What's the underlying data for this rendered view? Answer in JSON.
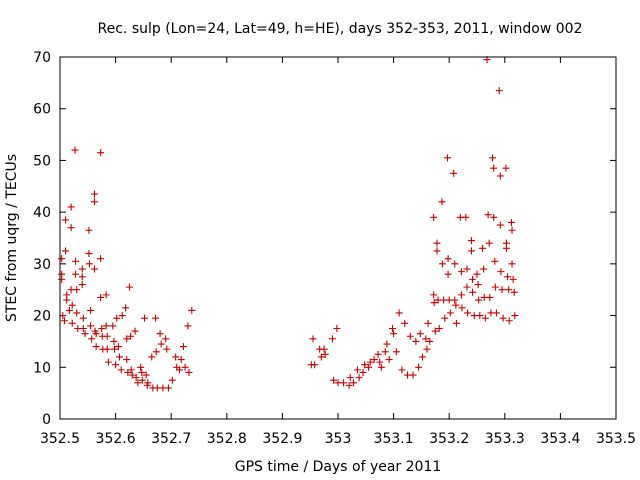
{
  "chart_data": {
    "type": "scatter",
    "title": "Rec. sulp (Lon=24, Lat=49, h=HE), days 352-353, 2011, window 002",
    "xlabel": "GPS time / Days of year 2011",
    "ylabel": "STEC from uqrg / TECUs",
    "xlim": [
      352.5,
      353.5
    ],
    "ylim": [
      0,
      70
    ],
    "xticks": [
      352.5,
      352.6,
      352.7,
      352.8,
      352.9,
      353.0,
      353.1,
      353.2,
      353.3,
      353.4,
      353.5
    ],
    "xtick_labels": [
      "352.5",
      "352.6",
      "352.7",
      "352.8",
      "352.9",
      "353",
      "353.1",
      "353.2",
      "353.3",
      "353.4",
      "353.5"
    ],
    "yticks": [
      0,
      10,
      20,
      30,
      40,
      50,
      60,
      70
    ],
    "ytick_labels": [
      "0",
      "10",
      "20",
      "30",
      "40",
      "50",
      "60",
      "70"
    ],
    "grid": false,
    "marker": "+",
    "color": "#cc0000",
    "points": [
      [
        352.503,
        31.0
      ],
      [
        352.503,
        28.0
      ],
      [
        352.503,
        27.0
      ],
      [
        352.505,
        20.0
      ],
      [
        352.508,
        19.0
      ],
      [
        352.51,
        38.5
      ],
      [
        352.51,
        32.5
      ],
      [
        352.512,
        24.0
      ],
      [
        352.512,
        23.0
      ],
      [
        352.517,
        21.0
      ],
      [
        352.52,
        41.0
      ],
      [
        352.52,
        37.0
      ],
      [
        352.52,
        25.0
      ],
      [
        352.522,
        22.0
      ],
      [
        352.522,
        18.5
      ],
      [
        352.527,
        52.0
      ],
      [
        352.528,
        30.5
      ],
      [
        352.528,
        28.0
      ],
      [
        352.53,
        25.0
      ],
      [
        352.53,
        20.5
      ],
      [
        352.532,
        17.5
      ],
      [
        352.54,
        29.0
      ],
      [
        352.54,
        27.5
      ],
      [
        352.54,
        26.0
      ],
      [
        352.542,
        19.5
      ],
      [
        352.542,
        17.5
      ],
      [
        352.545,
        16.5
      ],
      [
        352.552,
        36.5
      ],
      [
        352.552,
        32.0
      ],
      [
        352.553,
        30.0
      ],
      [
        352.555,
        21.0
      ],
      [
        352.555,
        18.0
      ],
      [
        352.557,
        15.5
      ],
      [
        352.562,
        43.5
      ],
      [
        352.562,
        42.0
      ],
      [
        352.562,
        29.0
      ],
      [
        352.563,
        17.0
      ],
      [
        352.565,
        16.5
      ],
      [
        352.565,
        14.0
      ],
      [
        352.573,
        51.5
      ],
      [
        352.573,
        31.0
      ],
      [
        352.573,
        23.5
      ],
      [
        352.575,
        17.5
      ],
      [
        352.576,
        16.0
      ],
      [
        352.577,
        13.5
      ],
      [
        352.583,
        24.0
      ],
      [
        352.583,
        18.0
      ],
      [
        352.585,
        16.0
      ],
      [
        352.585,
        13.5
      ],
      [
        352.587,
        11.0
      ],
      [
        352.595,
        18.0
      ],
      [
        352.597,
        15.0
      ],
      [
        352.598,
        13.5
      ],
      [
        352.6,
        10.5
      ],
      [
        352.602,
        19.5
      ],
      [
        352.605,
        14.0
      ],
      [
        352.607,
        12.0
      ],
      [
        352.61,
        9.5
      ],
      [
        352.612,
        20.0
      ],
      [
        352.618,
        21.5
      ],
      [
        352.62,
        15.5
      ],
      [
        352.62,
        11.5
      ],
      [
        352.622,
        9.0
      ],
      [
        352.625,
        25.5
      ],
      [
        352.627,
        16.0
      ],
      [
        352.628,
        9.5
      ],
      [
        352.63,
        8.5
      ],
      [
        352.635,
        17.0
      ],
      [
        352.637,
        8.0
      ],
      [
        352.64,
        7.0
      ],
      [
        352.645,
        10.0
      ],
      [
        352.647,
        9.0
      ],
      [
        352.648,
        7.5
      ],
      [
        352.652,
        19.5
      ],
      [
        352.655,
        8.5
      ],
      [
        352.657,
        6.5
      ],
      [
        352.658,
        7.0
      ],
      [
        352.665,
        12.0
      ],
      [
        352.667,
        6.0
      ],
      [
        352.672,
        19.5
      ],
      [
        352.673,
        13.0
      ],
      [
        352.675,
        6.0
      ],
      [
        352.68,
        16.5
      ],
      [
        352.682,
        14.5
      ],
      [
        352.685,
        6.0
      ],
      [
        352.69,
        15.5
      ],
      [
        352.692,
        13.5
      ],
      [
        352.695,
        6.0
      ],
      [
        352.702,
        7.5
      ],
      [
        352.708,
        12.0
      ],
      [
        352.71,
        10.0
      ],
      [
        352.715,
        9.5
      ],
      [
        352.718,
        11.5
      ],
      [
        352.722,
        14.0
      ],
      [
        352.725,
        10.0
      ],
      [
        352.73,
        18.0
      ],
      [
        352.732,
        9.0
      ],
      [
        352.737,
        21.0
      ],
      [
        352.952,
        10.5
      ],
      [
        352.955,
        15.5
      ],
      [
        352.958,
        10.5
      ],
      [
        352.967,
        13.5
      ],
      [
        352.97,
        12.0
      ],
      [
        352.975,
        13.5
      ],
      [
        352.977,
        12.5
      ],
      [
        352.99,
        15.5
      ],
      [
        352.992,
        7.5
      ],
      [
        352.998,
        17.5
      ],
      [
        353.0,
        7.0
      ],
      [
        353.01,
        7.0
      ],
      [
        353.02,
        6.5
      ],
      [
        353.022,
        8.0
      ],
      [
        353.028,
        7.0
      ],
      [
        353.035,
        9.5
      ],
      [
        353.038,
        8.0
      ],
      [
        353.045,
        9.0
      ],
      [
        353.048,
        10.5
      ],
      [
        353.055,
        10.0
      ],
      [
        353.058,
        11.0
      ],
      [
        353.065,
        11.5
      ],
      [
        353.072,
        12.5
      ],
      [
        353.075,
        11.0
      ],
      [
        353.078,
        10.0
      ],
      [
        353.085,
        13.0
      ],
      [
        353.088,
        14.5
      ],
      [
        353.092,
        11.5
      ],
      [
        353.098,
        17.5
      ],
      [
        353.1,
        16.5
      ],
      [
        353.105,
        13.0
      ],
      [
        353.11,
        20.5
      ],
      [
        353.115,
        9.5
      ],
      [
        353.12,
        18.5
      ],
      [
        353.125,
        8.5
      ],
      [
        353.13,
        16.0
      ],
      [
        353.135,
        8.5
      ],
      [
        353.14,
        15.0
      ],
      [
        353.145,
        10.0
      ],
      [
        353.148,
        16.5
      ],
      [
        353.152,
        12.0
      ],
      [
        353.158,
        15.5
      ],
      [
        353.16,
        13.5
      ],
      [
        353.162,
        18.5
      ],
      [
        353.165,
        15.0
      ],
      [
        353.172,
        39.0
      ],
      [
        353.172,
        24.0
      ],
      [
        353.173,
        22.5
      ],
      [
        353.175,
        17.0
      ],
      [
        353.178,
        34.0
      ],
      [
        353.178,
        32.5
      ],
      [
        353.18,
        23.0
      ],
      [
        353.182,
        17.5
      ],
      [
        353.187,
        42.0
      ],
      [
        353.188,
        30.0
      ],
      [
        353.19,
        23.0
      ],
      [
        353.192,
        19.5
      ],
      [
        353.197,
        50.5
      ],
      [
        353.198,
        31.0
      ],
      [
        353.198,
        28.0
      ],
      [
        353.2,
        23.0
      ],
      [
        353.202,
        20.5
      ],
      [
        353.208,
        47.5
      ],
      [
        353.21,
        30.0
      ],
      [
        353.21,
        23.0
      ],
      [
        353.212,
        22.0
      ],
      [
        353.213,
        18.5
      ],
      [
        353.22,
        39.0
      ],
      [
        353.222,
        28.5
      ],
      [
        353.222,
        24.0
      ],
      [
        353.223,
        21.5
      ],
      [
        353.23,
        39.0
      ],
      [
        353.232,
        29.0
      ],
      [
        353.232,
        25.5
      ],
      [
        353.233,
        20.5
      ],
      [
        353.24,
        34.5
      ],
      [
        353.24,
        32.5
      ],
      [
        353.242,
        27.0
      ],
      [
        353.242,
        24.5
      ],
      [
        353.245,
        20.0
      ],
      [
        353.25,
        28.0
      ],
      [
        353.252,
        26.0
      ],
      [
        353.253,
        23.0
      ],
      [
        353.255,
        20.0
      ],
      [
        353.26,
        33.0
      ],
      [
        353.262,
        29.0
      ],
      [
        353.263,
        23.5
      ],
      [
        353.265,
        19.5
      ],
      [
        353.268,
        69.5
      ],
      [
        353.27,
        39.5
      ],
      [
        353.272,
        34.0
      ],
      [
        353.273,
        23.5
      ],
      [
        353.275,
        20.5
      ],
      [
        353.278,
        50.5
      ],
      [
        353.28,
        48.5
      ],
      [
        353.28,
        39.0
      ],
      [
        353.282,
        30.5
      ],
      [
        353.283,
        25.5
      ],
      [
        353.285,
        20.5
      ],
      [
        353.29,
        63.5
      ],
      [
        353.292,
        47.0
      ],
      [
        353.292,
        37.5
      ],
      [
        353.293,
        28.5
      ],
      [
        353.295,
        25.0
      ],
      [
        353.297,
        19.5
      ],
      [
        353.302,
        48.5
      ],
      [
        353.303,
        34.0
      ],
      [
        353.303,
        33.0
      ],
      [
        353.305,
        27.5
      ],
      [
        353.307,
        25.0
      ],
      [
        353.308,
        19.0
      ],
      [
        353.312,
        38.0
      ],
      [
        353.313,
        36.5
      ],
      [
        353.313,
        30.0
      ],
      [
        353.315,
        27.0
      ],
      [
        353.317,
        24.5
      ],
      [
        353.318,
        20.0
      ]
    ]
  }
}
